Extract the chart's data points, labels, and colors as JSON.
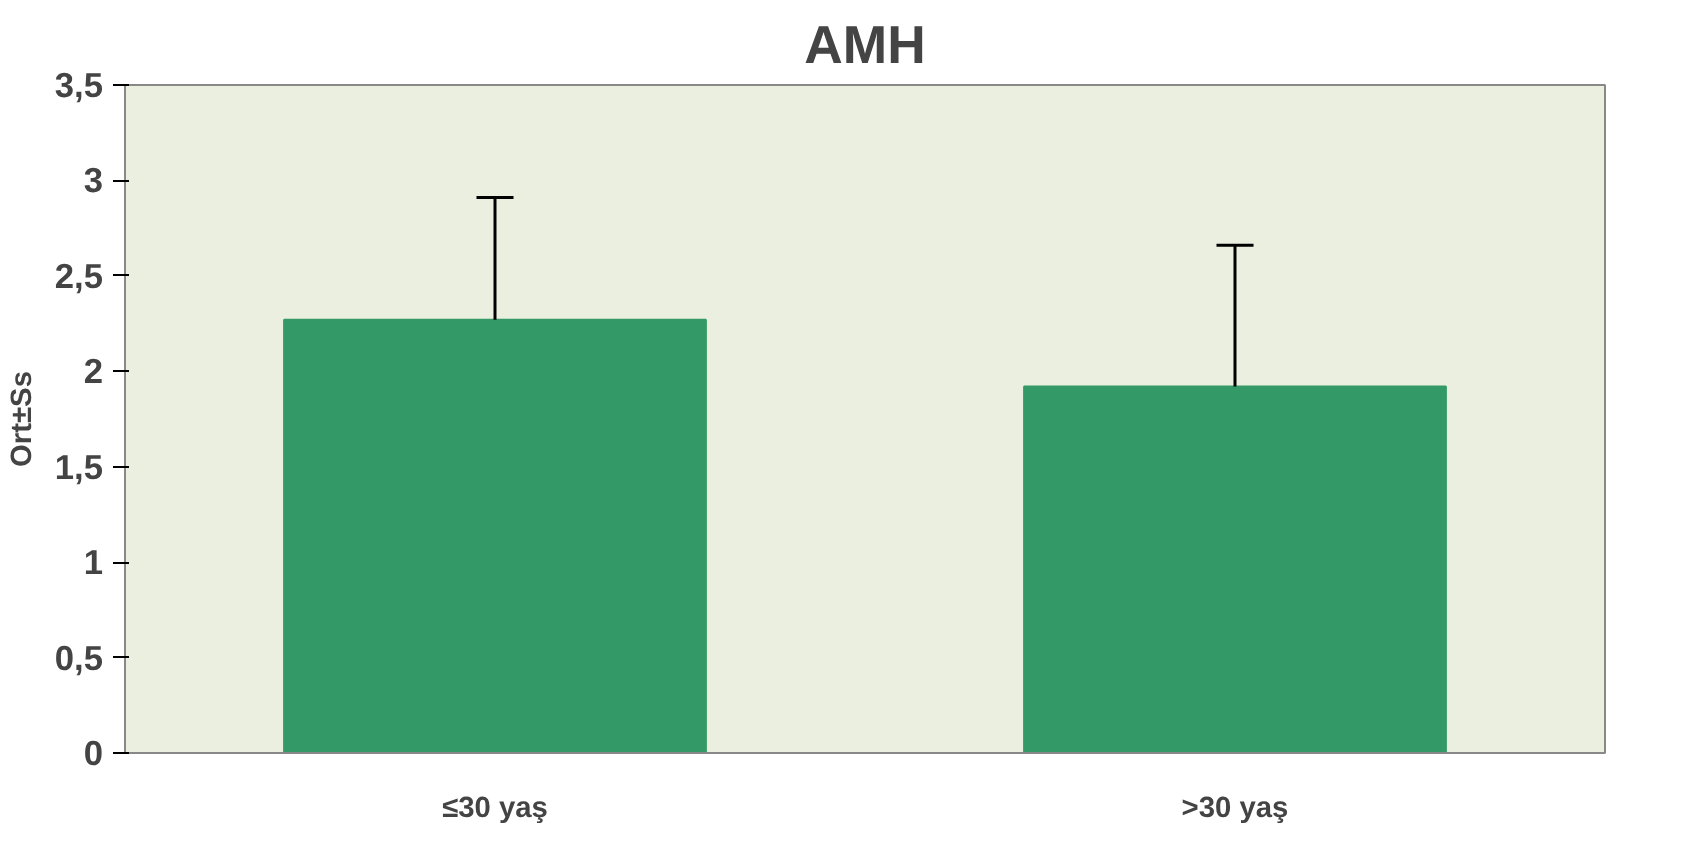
{
  "chart_data": {
    "type": "bar",
    "title": "AMH",
    "ylabel": "Ort±Ss",
    "categories": [
      "≤30 yaş",
      ">30 yaş"
    ],
    "values": [
      2.27,
      1.92
    ],
    "color": "#339966",
    "errors": [
      [
        2.27,
        2.91
      ],
      [
        1.92,
        2.66
      ]
    ],
    "ylim": [
      0,
      3.5
    ],
    "yticks": [
      {
        "value": 0,
        "label": "0"
      },
      {
        "value": 0.5,
        "label": "0,5"
      },
      {
        "value": 1,
        "label": "1"
      },
      {
        "value": 1.5,
        "label": "1,5"
      },
      {
        "value": 2,
        "label": "2"
      },
      {
        "value": 2.5,
        "label": "2,5"
      },
      {
        "value": 3,
        "label": "3"
      },
      {
        "value": 3.5,
        "label": "3,5"
      }
    ],
    "grid": false
  }
}
